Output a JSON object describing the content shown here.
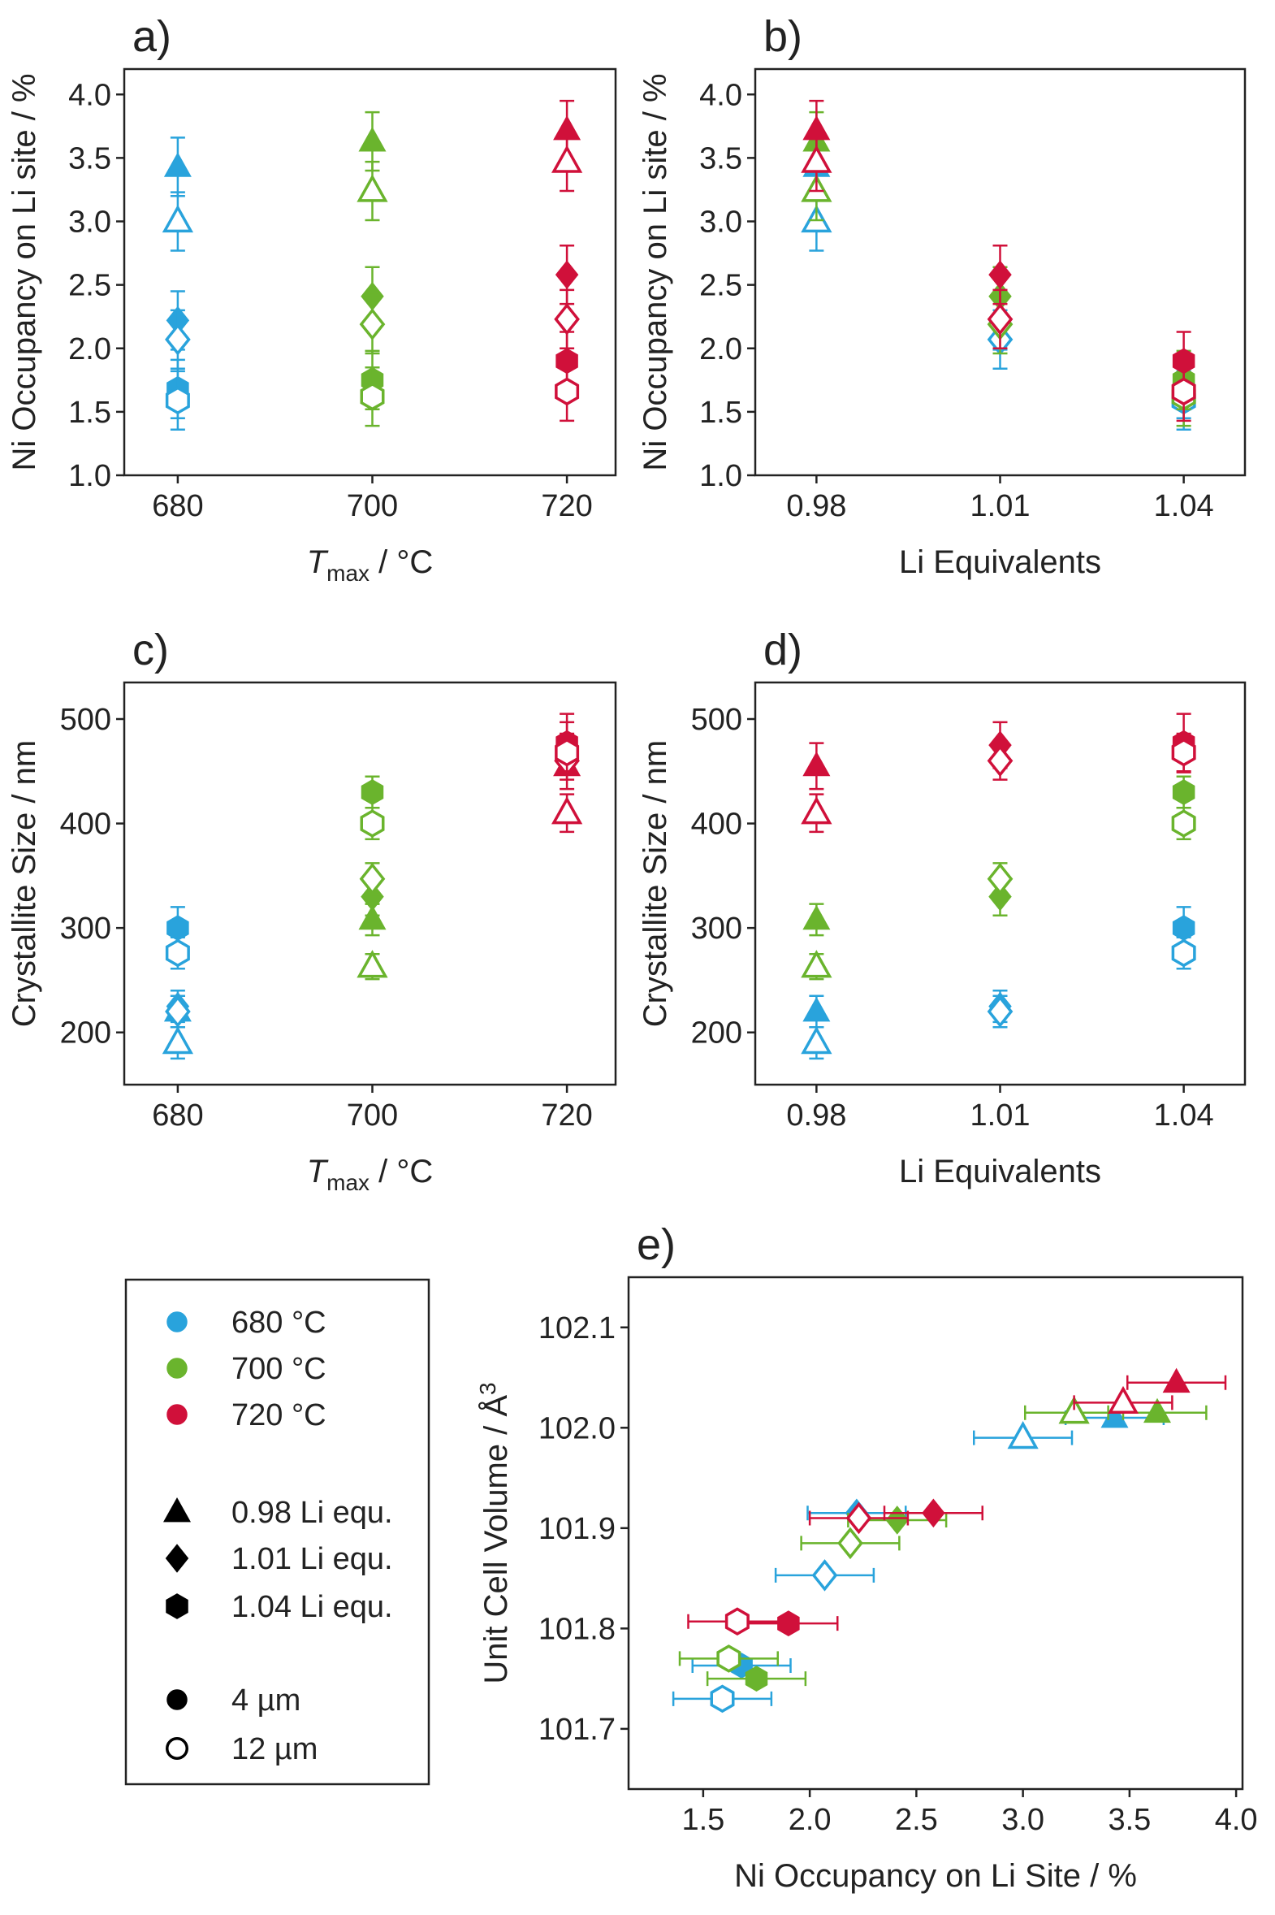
{
  "chart_data": [
    {
      "type": "scatter",
      "panel": "a)",
      "ylabel": "Ni Occupancy on Li site / %",
      "xlabel": {
        "symbol": "T",
        "subscript": "max",
        "text": " / °C"
      },
      "xlim": [
        674.5,
        725
      ],
      "xticks": [
        680,
        700,
        720
      ],
      "ylim": [
        1.0,
        4.2
      ],
      "yticks": [
        {
          "value": 1,
          "label": "1.0"
        },
        1.5,
        {
          "value": 2,
          "label": "2.0"
        },
        2.5,
        {
          "value": 3,
          "label": "3.0"
        },
        3.5,
        {
          "value": 4,
          "label": "4.0"
        }
      ],
      "series": [
        {
          "color": "#29a3dc",
          "filled": true,
          "markers": [
            "triangle",
            "diamond",
            "hexagon"
          ],
          "x": [
            680,
            680,
            680
          ],
          "values": [
            3.43,
            2.22,
            1.68
          ],
          "errors": [
            0.23,
            0.23,
            0.23
          ]
        },
        {
          "color": "#29a3dc",
          "filled": false,
          "markers": [
            "triangle",
            "diamond",
            "hexagon"
          ],
          "x": [
            680,
            680,
            680
          ],
          "values": [
            3.0,
            2.07,
            1.59
          ],
          "errors": [
            0.23,
            0.23,
            0.23
          ]
        },
        {
          "color": "#6ab42d",
          "filled": true,
          "markers": [
            "triangle",
            "diamond",
            "hexagon"
          ],
          "x": [
            700,
            700,
            700
          ],
          "values": [
            3.63,
            2.41,
            1.75
          ],
          "errors": [
            0.23,
            0.23,
            0.23
          ]
        },
        {
          "color": "#6ab42d",
          "filled": false,
          "markers": [
            "triangle",
            "diamond",
            "hexagon"
          ],
          "x": [
            700,
            700,
            700
          ],
          "values": [
            3.24,
            2.19,
            1.62
          ],
          "errors": [
            0.23,
            0.23,
            0.23
          ]
        },
        {
          "color": "#d0103a",
          "filled": true,
          "markers": [
            "triangle",
            "diamond",
            "hexagon"
          ],
          "x": [
            720,
            720,
            720
          ],
          "values": [
            3.72,
            2.58,
            1.9
          ],
          "errors": [
            0.23,
            0.23,
            0.23
          ]
        },
        {
          "color": "#d0103a",
          "filled": false,
          "markers": [
            "triangle",
            "diamond",
            "hexagon"
          ],
          "x": [
            720,
            720,
            720
          ],
          "values": [
            3.47,
            2.23,
            1.66
          ],
          "errors": [
            0.23,
            0.23,
            0.23
          ]
        }
      ]
    },
    {
      "type": "scatter",
      "panel": "b)",
      "ylabel": "Ni Occupancy on Li site / %",
      "xlabel": "Li Equivalents",
      "xlim": [
        0.97,
        1.05
      ],
      "xticks": [
        0.98,
        1.01,
        1.04
      ],
      "ylim": [
        1.0,
        4.2
      ],
      "yticks": [
        {
          "value": 1,
          "label": "1.0"
        },
        1.5,
        {
          "value": 2,
          "label": "2.0"
        },
        2.5,
        {
          "value": 3,
          "label": "3.0"
        },
        3.5,
        {
          "value": 4,
          "label": "4.0"
        }
      ],
      "series": [
        {
          "color": "#29a3dc",
          "filled": true,
          "markers": [
            "triangle",
            "diamond",
            "hexagon"
          ],
          "x": [
            0.98,
            1.01,
            1.04
          ],
          "values": [
            3.43,
            2.22,
            1.68
          ],
          "errors": [
            0.23,
            0.23,
            0.23
          ]
        },
        {
          "color": "#29a3dc",
          "filled": false,
          "markers": [
            "triangle",
            "diamond",
            "hexagon"
          ],
          "x": [
            0.98,
            1.01,
            1.04
          ],
          "values": [
            3.0,
            2.07,
            1.59
          ],
          "errors": [
            0.23,
            0.23,
            0.23
          ]
        },
        {
          "color": "#6ab42d",
          "filled": true,
          "markers": [
            "triangle",
            "diamond",
            "hexagon"
          ],
          "x": [
            0.98,
            1.01,
            1.04
          ],
          "values": [
            3.63,
            2.41,
            1.75
          ],
          "errors": [
            0.23,
            0.23,
            0.23
          ]
        },
        {
          "color": "#6ab42d",
          "filled": false,
          "markers": [
            "triangle",
            "diamond",
            "hexagon"
          ],
          "x": [
            0.98,
            1.01,
            1.04
          ],
          "values": [
            3.24,
            2.19,
            1.62
          ],
          "errors": [
            0.23,
            0.23,
            0.23
          ]
        },
        {
          "color": "#d0103a",
          "filled": true,
          "markers": [
            "triangle",
            "diamond",
            "hexagon"
          ],
          "x": [
            0.98,
            1.01,
            1.04
          ],
          "values": [
            3.72,
            2.58,
            1.9
          ],
          "errors": [
            0.23,
            0.23,
            0.23
          ]
        },
        {
          "color": "#d0103a",
          "filled": false,
          "markers": [
            "triangle",
            "diamond",
            "hexagon"
          ],
          "x": [
            0.98,
            1.01,
            1.04
          ],
          "values": [
            3.47,
            2.23,
            1.66
          ],
          "errors": [
            0.23,
            0.23,
            0.23
          ]
        }
      ]
    },
    {
      "type": "scatter",
      "panel": "c)",
      "ylabel": "Crystallite Size / nm",
      "xlabel": {
        "symbol": "T",
        "subscript": "max",
        "text": " / °C"
      },
      "xlim": [
        674.5,
        725
      ],
      "xticks": [
        680,
        700,
        720
      ],
      "ylim": [
        150,
        535
      ],
      "yticks": [
        200,
        300,
        400,
        500
      ],
      "series": [
        {
          "color": "#29a3dc",
          "filled": true,
          "markers": [
            "triangle",
            "diamond",
            "hexagon"
          ],
          "x": [
            680,
            680,
            680
          ],
          "values": [
            220,
            225,
            300
          ],
          "errors": [
            15,
            15,
            20
          ]
        },
        {
          "color": "#29a3dc",
          "filled": false,
          "markers": [
            "triangle",
            "diamond",
            "hexagon"
          ],
          "x": [
            680,
            680,
            680
          ],
          "values": [
            190,
            220,
            276
          ],
          "errors": [
            15,
            15,
            15
          ]
        },
        {
          "color": "#6ab42d",
          "filled": true,
          "markers": [
            "triangle",
            "diamond",
            "hexagon"
          ],
          "x": [
            700,
            700,
            700
          ],
          "values": [
            308,
            330,
            430
          ],
          "errors": [
            15,
            18,
            15
          ]
        },
        {
          "color": "#6ab42d",
          "filled": false,
          "markers": [
            "triangle",
            "diamond",
            "hexagon"
          ],
          "x": [
            700,
            700,
            700
          ],
          "values": [
            263,
            347,
            400
          ],
          "errors": [
            12,
            15,
            15
          ]
        },
        {
          "color": "#d0103a",
          "filled": true,
          "markers": [
            "triangle",
            "diamond",
            "hexagon"
          ],
          "x": [
            720,
            720,
            720
          ],
          "values": [
            455,
            475,
            477
          ],
          "errors": [
            22,
            22,
            28
          ]
        },
        {
          "color": "#d0103a",
          "filled": false,
          "markers": [
            "triangle",
            "diamond",
            "hexagon"
          ],
          "x": [
            720,
            720,
            720
          ],
          "values": [
            410,
            460,
            468
          ],
          "errors": [
            18,
            18,
            18
          ]
        }
      ]
    },
    {
      "type": "scatter",
      "panel": "d)",
      "ylabel": "Crystallite Size / nm",
      "xlabel": "Li Equivalents",
      "xlim": [
        0.97,
        1.05
      ],
      "xticks": [
        0.98,
        1.01,
        1.04
      ],
      "ylim": [
        150,
        535
      ],
      "yticks": [
        200,
        300,
        400,
        500
      ],
      "series": [
        {
          "color": "#29a3dc",
          "filled": true,
          "markers": [
            "triangle",
            "diamond",
            "hexagon"
          ],
          "x": [
            0.98,
            1.01,
            1.04
          ],
          "values": [
            220,
            225,
            300
          ],
          "errors": [
            15,
            15,
            20
          ]
        },
        {
          "color": "#29a3dc",
          "filled": false,
          "markers": [
            "triangle",
            "diamond",
            "hexagon"
          ],
          "x": [
            0.98,
            1.01,
            1.04
          ],
          "values": [
            190,
            220,
            276
          ],
          "errors": [
            15,
            15,
            15
          ]
        },
        {
          "color": "#6ab42d",
          "filled": true,
          "markers": [
            "triangle",
            "diamond",
            "hexagon"
          ],
          "x": [
            0.98,
            1.01,
            1.04
          ],
          "values": [
            308,
            330,
            430
          ],
          "errors": [
            15,
            18,
            15
          ]
        },
        {
          "color": "#6ab42d",
          "filled": false,
          "markers": [
            "triangle",
            "diamond",
            "hexagon"
          ],
          "x": [
            0.98,
            1.01,
            1.04
          ],
          "values": [
            263,
            347,
            400
          ],
          "errors": [
            12,
            15,
            15
          ]
        },
        {
          "color": "#d0103a",
          "filled": true,
          "markers": [
            "triangle",
            "diamond",
            "hexagon"
          ],
          "x": [
            0.98,
            1.01,
            1.04
          ],
          "values": [
            455,
            475,
            477
          ],
          "errors": [
            22,
            22,
            28
          ]
        },
        {
          "color": "#d0103a",
          "filled": false,
          "markers": [
            "triangle",
            "diamond",
            "hexagon"
          ],
          "x": [
            0.98,
            1.01,
            1.04
          ],
          "values": [
            410,
            460,
            468
          ],
          "errors": [
            18,
            18,
            18
          ]
        }
      ]
    },
    {
      "type": "scatter",
      "panel": "e)",
      "ylabel": {
        "text": "Unit Cell Volume / Å",
        "superscript": "3"
      },
      "xlabel": "Ni Occupancy on Li Site / %",
      "xlim": [
        1.15,
        4.03
      ],
      "xticks": [
        1.5,
        {
          "value": 2,
          "label": "2.0"
        },
        2.5,
        {
          "value": 3,
          "label": "3.0"
        },
        3.5,
        {
          "value": 4,
          "label": "4.0"
        }
      ],
      "ylim": [
        101.64,
        102.15
      ],
      "yticks": [
        101.7,
        101.8,
        101.9,
        {
          "value": 102,
          "label": "102.0"
        },
        102.1
      ],
      "series": [
        {
          "color": "#29a3dc",
          "filled": true,
          "markers": [
            "triangle",
            "diamond",
            "hexagon"
          ],
          "x": [
            3.43,
            2.22,
            1.68
          ],
          "xerr": [
            0.23,
            0.23,
            0.23
          ],
          "values": [
            102.01,
            101.915,
            101.763
          ]
        },
        {
          "color": "#29a3dc",
          "filled": false,
          "markers": [
            "triangle",
            "diamond",
            "hexagon"
          ],
          "x": [
            3.0,
            2.07,
            1.59
          ],
          "xerr": [
            0.23,
            0.23,
            0.23
          ],
          "values": [
            101.99,
            101.853,
            101.73
          ]
        },
        {
          "color": "#6ab42d",
          "filled": true,
          "markers": [
            "triangle",
            "diamond",
            "hexagon"
          ],
          "x": [
            3.63,
            2.41,
            1.75
          ],
          "xerr": [
            0.23,
            0.23,
            0.23
          ],
          "values": [
            102.015,
            101.908,
            101.75
          ]
        },
        {
          "color": "#6ab42d",
          "filled": false,
          "markers": [
            "triangle",
            "diamond",
            "hexagon"
          ],
          "x": [
            3.24,
            2.19,
            1.62
          ],
          "xerr": [
            0.23,
            0.23,
            0.23
          ],
          "values": [
            102.015,
            101.885,
            101.77
          ]
        },
        {
          "color": "#d0103a",
          "filled": true,
          "markers": [
            "triangle",
            "diamond",
            "hexagon"
          ],
          "x": [
            3.72,
            2.58,
            1.9
          ],
          "xerr": [
            0.23,
            0.23,
            0.23
          ],
          "values": [
            102.045,
            101.915,
            101.805
          ]
        },
        {
          "color": "#d0103a",
          "filled": false,
          "markers": [
            "triangle",
            "diamond",
            "hexagon"
          ],
          "x": [
            3.47,
            2.23,
            1.66
          ],
          "xerr": [
            0.23,
            0.23,
            0.23
          ],
          "values": [
            102.025,
            101.91,
            101.807
          ]
        }
      ]
    }
  ],
  "legend": {
    "items": [
      {
        "label": "680 °C",
        "color": "#29a3dc",
        "marker": "circle",
        "filled": true
      },
      {
        "label": "700 °C",
        "color": "#6ab42d",
        "marker": "circle",
        "filled": true
      },
      {
        "label": "720 °C",
        "color": "#d0103a",
        "marker": "circle",
        "filled": true
      },
      {
        "label": "0.98 Li equ.",
        "color": "#000000",
        "marker": "triangle",
        "filled": true
      },
      {
        "label": "1.01 Li equ.",
        "color": "#000000",
        "marker": "diamond",
        "filled": true
      },
      {
        "label": "1.04 Li equ.",
        "color": "#000000",
        "marker": "hexagon",
        "filled": true
      },
      {
        "label": "4 µm",
        "color": "#000000",
        "marker": "circle",
        "filled": true
      },
      {
        "label": "12 µm",
        "color": "#000000",
        "marker": "circle",
        "filled": false
      }
    ]
  }
}
